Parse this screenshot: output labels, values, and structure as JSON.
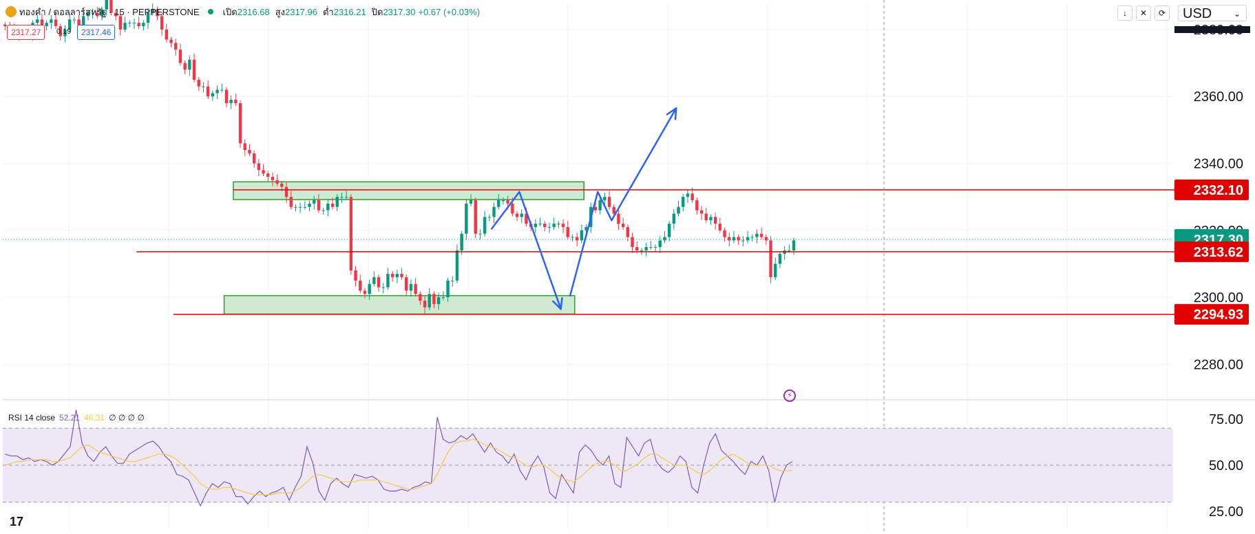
{
  "header": {
    "symbol": "ทองคำ / ดอลลาร์สหรัฐ · 15 · PEPPERSTONE",
    "open_label": "เปิด",
    "open": "2316.68",
    "high_label": "สูง",
    "high": "2317.96",
    "low_label": "ต่ำ",
    "low": "2316.21",
    "close_label": "ปิด",
    "close": "2317.30",
    "change": "+0.67 (+0.03%)"
  },
  "trade": {
    "sell": "2317.27",
    "spread": "0.19",
    "buy": "2317.46"
  },
  "toolbar": {
    "arrow_down": "↓",
    "collapse": "✕",
    "refresh": "⟳",
    "currency": "USD",
    "chevron": "⌄"
  },
  "rsi_header": {
    "label": "RSI 14 close",
    "rsi": "52.21",
    "ma": "46.31",
    "extra": "∅ ∅ ∅ ∅"
  },
  "logo": "17",
  "colors": {
    "up": "#089981",
    "down": "#f23645",
    "line_red": "#e00000",
    "zone": "#c8e6c9",
    "zone_border": "#2e9d2e",
    "arrow": "#2962ff",
    "rsi": "#7e57c2",
    "rsi_ma": "#f7c948",
    "rsi_band": "#ede7f6"
  },
  "chart_data": {
    "type": "candlestick",
    "price_axis": {
      "min": 2270,
      "max": 2388,
      "ticks": [
        "2380.00",
        "2360.00",
        "2340.00",
        "2320.00",
        "2300.00",
        "2280.00"
      ]
    },
    "rsi_axis": {
      "min": 15,
      "max": 85,
      "ticks": [
        "75.00",
        "50.00",
        "25.00"
      ]
    },
    "price_labels": [
      {
        "value": 2332.1,
        "text": "2332.10",
        "color": "#e00000"
      },
      {
        "value": 2317.3,
        "text": "2317.30",
        "color": "#089981"
      },
      {
        "value": 2313.62,
        "text": "2313.62",
        "color": "#e00000"
      },
      {
        "value": 2294.93,
        "text": "2294.93",
        "color": "#e00000"
      }
    ],
    "horizontal_lines": [
      {
        "value": 2332.1,
        "from_bar": 50,
        "to_bar": 160
      },
      {
        "value": 2313.62,
        "from_bar": 29,
        "to_bar": 180
      },
      {
        "value": 2294.93,
        "from_bar": 37,
        "to_bar": 180
      }
    ],
    "zones": [
      {
        "top": 2334.5,
        "bottom": 2329.2,
        "from_bar": 50,
        "to_bar": 126
      },
      {
        "top": 2300.5,
        "bottom": 2295.0,
        "from_bar": 48,
        "to_bar": 124
      }
    ],
    "projection_path": [
      [
        106,
        2320.5
      ],
      [
        112,
        2331.5
      ],
      [
        121,
        2296.5
      ],
      [
        123,
        2300.5
      ],
      [
        129,
        2331.5
      ],
      [
        132,
        2323.0
      ],
      [
        146,
        2356.5
      ]
    ],
    "closes": [
      2381,
      2380,
      2378,
      2380,
      2379,
      2378,
      2382,
      2383,
      2381,
      2382,
      2383,
      2381,
      2378,
      2380,
      2383,
      2383,
      2381,
      2384,
      2385,
      2385,
      2384,
      2386,
      2389,
      2385,
      2384,
      2380,
      2382,
      2382,
      2382,
      2381,
      2382,
      2385,
      2386,
      2384,
      2380,
      2377,
      2376,
      2374,
      2370,
      2368,
      2371,
      2365,
      2363,
      2363,
      2360,
      2361,
      2362,
      2362,
      2358,
      2359,
      2358,
      2346,
      2344,
      2343,
      2340,
      2338,
      2337,
      2336,
      2335,
      2334,
      2333,
      2330,
      2327,
      2327,
      2327,
      2327,
      2328,
      2329,
      2326,
      2326,
      2328,
      2327,
      2330,
      2330,
      2330,
      2308,
      2305,
      2302,
      2301,
      2304,
      2306,
      2303,
      2303,
      2307,
      2306,
      2307,
      2306,
      2302,
      2304,
      2301,
      2299,
      2297,
      2301,
      2298,
      2300,
      2300,
      2305,
      2305,
      2314,
      2319,
      2328,
      2329,
      2319,
      2319,
      2324,
      2324,
      2327,
      2329,
      2329,
      2328,
      2325,
      2324,
      2325,
      2322,
      2321,
      2322,
      2322,
      2321,
      2321,
      2322,
      2322,
      2321,
      2318,
      2318,
      2317,
      2320,
      2321,
      2327,
      2326,
      2329,
      2330,
      2327,
      2325,
      2322,
      2321,
      2318,
      2315,
      2314,
      2314,
      2315,
      2315,
      2315,
      2317,
      2318,
      2322,
      2325,
      2327,
      2330,
      2331,
      2329,
      2326,
      2325,
      2323,
      2324,
      2322,
      2320,
      2318,
      2317,
      2318,
      2317,
      2317,
      2318,
      2318,
      2319,
      2318,
      2317,
      2306,
      2310,
      2313,
      2314,
      2314,
      2317
    ],
    "rsi_values": [
      56,
      55,
      55,
      53,
      54,
      52,
      53,
      52,
      50,
      52,
      56,
      60,
      80,
      62,
      55,
      52,
      57,
      60,
      55,
      51,
      51,
      56,
      58,
      60,
      62,
      63,
      60,
      55,
      52,
      45,
      44,
      42,
      35,
      28,
      35,
      40,
      38,
      41,
      40,
      33,
      33,
      29,
      33,
      36,
      33,
      35,
      36,
      38,
      31,
      38,
      44,
      60,
      51,
      36,
      31,
      40,
      43,
      40,
      38,
      45,
      44,
      43,
      44,
      42,
      37,
      36,
      36,
      37,
      36,
      38,
      39,
      41,
      40,
      76,
      64,
      62,
      63,
      66,
      64,
      67,
      62,
      57,
      62,
      57,
      55,
      51,
      56,
      47,
      42,
      50,
      55,
      49,
      35,
      32,
      45,
      40,
      35,
      57,
      61,
      58,
      53,
      50,
      55,
      40,
      38,
      65,
      60,
      55,
      62,
      64,
      52,
      48,
      46,
      49,
      55,
      52,
      38,
      35,
      50,
      62,
      67,
      58,
      55,
      52,
      48,
      45,
      52,
      50,
      55,
      47,
      30,
      43,
      50,
      52
    ],
    "rsi_ma_values": [
      50,
      51,
      52,
      52,
      53,
      53,
      53,
      53,
      52,
      52,
      53,
      54,
      57,
      60,
      61,
      59,
      57,
      56,
      55,
      54,
      53,
      52,
      52,
      53,
      54,
      55,
      56,
      56,
      55,
      53,
      50,
      47,
      44,
      40,
      38,
      37,
      37,
      38,
      38,
      37,
      36,
      35,
      34,
      34,
      34,
      34,
      35,
      35,
      35,
      36,
      38,
      41,
      44,
      45,
      44,
      43,
      42,
      41,
      41,
      41,
      42,
      42,
      42,
      42,
      41,
      40,
      39,
      38,
      37,
      37,
      38,
      39,
      40,
      45,
      52,
      58,
      62,
      63,
      63,
      64,
      63,
      61,
      60,
      59,
      57,
      55,
      54,
      52,
      50,
      49,
      50,
      50,
      48,
      45,
      43,
      42,
      41,
      43,
      46,
      49,
      51,
      52,
      52,
      50,
      47,
      47,
      49,
      51,
      54,
      56,
      56,
      54,
      52,
      50,
      50,
      50,
      48,
      46,
      45,
      47,
      50,
      53,
      55,
      56,
      54,
      52,
      50,
      50,
      50,
      50,
      48,
      47,
      47,
      47
    ]
  }
}
